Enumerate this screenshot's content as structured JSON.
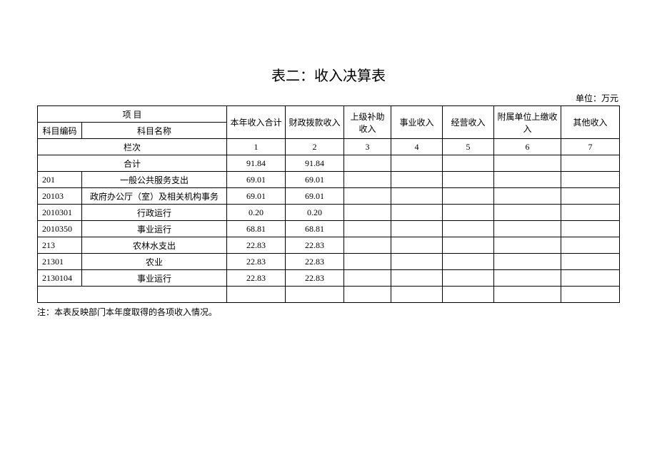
{
  "title": "表二：收入决算表",
  "unit_label": "单位：万元",
  "headers": {
    "project": "项  目",
    "code": "科目编码",
    "name": "科目名称",
    "total": "本年收入合计",
    "fiscal": "财政拨款收入",
    "upper": "上级补助收入",
    "career": "事业收入",
    "operate": "经营收入",
    "affiliate": "附属单位上缴收入",
    "other": "其他收入"
  },
  "col_index_row": {
    "label": "栏次",
    "c1": "1",
    "c2": "2",
    "c3": "3",
    "c4": "4",
    "c5": "5",
    "c6": "6",
    "c7": "7"
  },
  "total_row": {
    "label": "合计",
    "total": "91.84",
    "fiscal": "91.84",
    "upper": "",
    "career": "",
    "operate": "",
    "affiliate": "",
    "other": ""
  },
  "rows": [
    {
      "code": "201",
      "name": "一般公共服务支出",
      "total": "69.01",
      "fiscal": "69.01"
    },
    {
      "code": "20103",
      "name": "政府办公厅（室）及相关机构事务",
      "total": "69.01",
      "fiscal": "69.01"
    },
    {
      "code": "2010301",
      "name": "行政运行",
      "total": "0.20",
      "fiscal": "0.20"
    },
    {
      "code": "2010350",
      "name": "事业运行",
      "total": "68.81",
      "fiscal": "68.81"
    },
    {
      "code": "213",
      "name": "农林水支出",
      "total": "22.83",
      "fiscal": "22.83"
    },
    {
      "code": "21301",
      "name": "农业",
      "total": "22.83",
      "fiscal": "22.83"
    },
    {
      "code": "2130104",
      "name": "事业运行",
      "total": "22.83",
      "fiscal": "22.83"
    }
  ],
  "note": "注：本表反映部门本年度取得的各项收入情况。",
  "col_widths": {
    "code": "62px",
    "name": "178px",
    "total": "82px",
    "fiscal": "82px",
    "upper": "66px",
    "career": "72px",
    "operate": "72px",
    "affiliate": "94px",
    "other": "82px"
  }
}
